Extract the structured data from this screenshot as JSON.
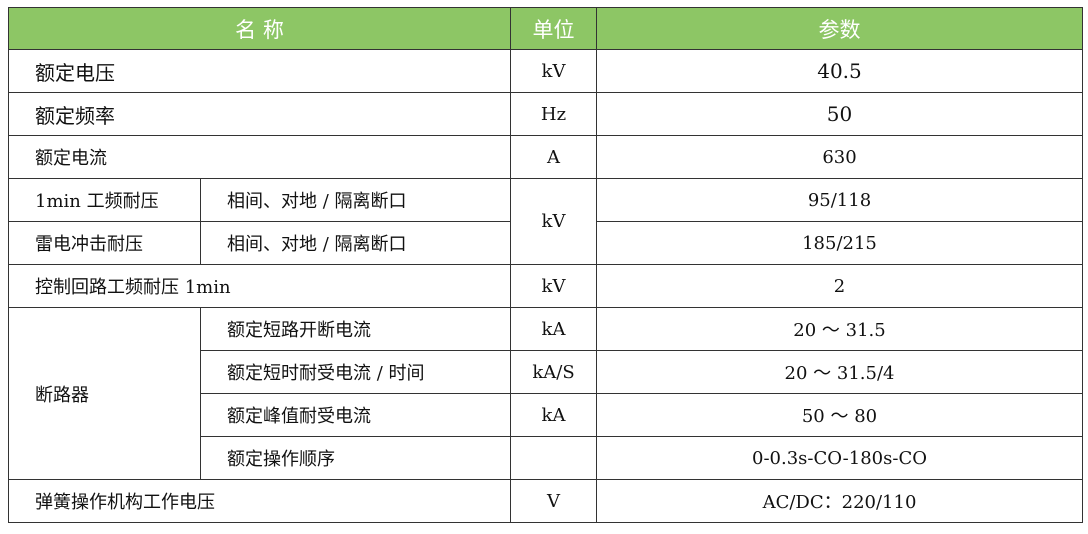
{
  "header": {
    "name": "名 称",
    "unit": "单位",
    "param": "参数"
  },
  "header_color": "#8dc665",
  "rows": {
    "rated_voltage": {
      "name": "额定电压",
      "unit": "kV",
      "value": "40.5"
    },
    "rated_frequency": {
      "name": "额定频率",
      "unit": "Hz",
      "value": "50"
    },
    "rated_current": {
      "name": "额定电流",
      "unit": "A",
      "value": "630"
    },
    "power_freq": {
      "name": "1min 工频耐压",
      "sub": "相间、对地 / 隔离断口",
      "value": "95/118"
    },
    "lightning": {
      "name": "雷电冲击耐压",
      "sub": "相间、对地 / 隔离断口",
      "value": "185/215"
    },
    "insulation_unit": "kV",
    "control_circuit": {
      "name": "控制回路工频耐压 1min",
      "unit": "kV",
      "value": "2"
    },
    "breaker": {
      "name": "断路器",
      "items": [
        {
          "sub": "额定短路开断电流",
          "unit": "kA",
          "value": "20 ～ 31.5"
        },
        {
          "sub": "额定短时耐受电流 / 时间",
          "unit": "kA/S",
          "value": "20 ～ 31.5/4"
        },
        {
          "sub": "额定峰值耐受电流",
          "unit": "kA",
          "value": "50 ～ 80"
        },
        {
          "sub": "额定操作顺序",
          "unit": "",
          "value": "0-0.3s-CO-180s-CO"
        }
      ]
    },
    "spring": {
      "name": "弹簧操作机构工作电压",
      "unit": "V",
      "value": "AC/DC：220/110"
    }
  }
}
